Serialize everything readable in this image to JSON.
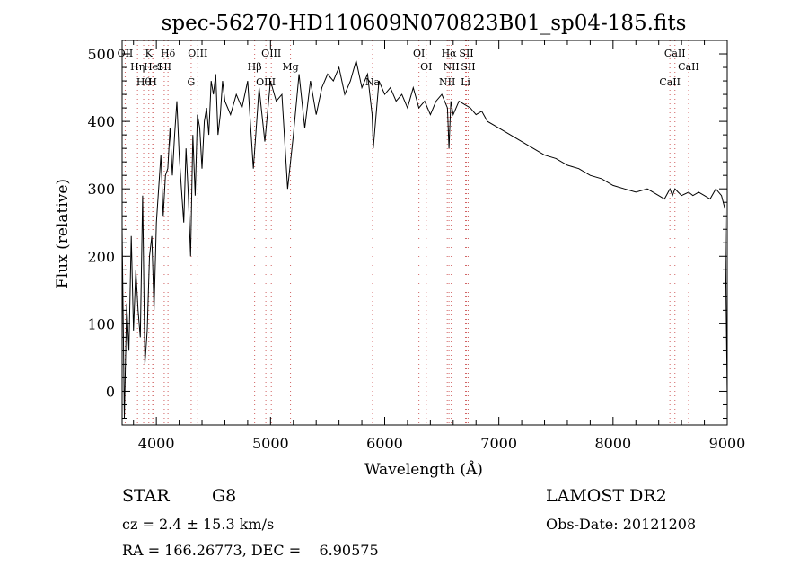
{
  "chart_data": {
    "type": "line",
    "title": "spec-56270-HD110609N070823B01_sp04-185.fits",
    "xlabel": "Wavelength (Å)",
    "ylabel": "Flux (relative)",
    "xlim": [
      3700,
      9000
    ],
    "ylim": [
      -50,
      520
    ],
    "xticks": [
      4000,
      5000,
      6000,
      7000,
      8000,
      9000
    ],
    "yticks": [
      0,
      100,
      200,
      300,
      400,
      500
    ],
    "grid": false,
    "series": [
      {
        "x": [
          3700,
          3720,
          3740,
          3760,
          3780,
          3800,
          3820,
          3840,
          3860,
          3880,
          3900,
          3920,
          3940,
          3960,
          3980,
          4000,
          4020,
          4040,
          4060,
          4080,
          4100,
          4120,
          4140,
          4160,
          4180,
          4200,
          4220,
          4240,
          4260,
          4280,
          4300,
          4320,
          4340,
          4360,
          4380,
          4400,
          4420,
          4440,
          4460,
          4480,
          4500,
          4520,
          4540,
          4560,
          4580,
          4600,
          4650,
          4700,
          4750,
          4800,
          4850,
          4900,
          4950,
          5000,
          5050,
          5100,
          5150,
          5200,
          5250,
          5300,
          5350,
          5400,
          5450,
          5500,
          5550,
          5600,
          5650,
          5700,
          5750,
          5800,
          5850,
          5890,
          5900,
          5950,
          6000,
          6050,
          6100,
          6150,
          6200,
          6250,
          6300,
          6350,
          6400,
          6450,
          6500,
          6550,
          6563,
          6580,
          6600,
          6650,
          6700,
          6750,
          6800,
          6850,
          6900,
          7000,
          7100,
          7200,
          7300,
          7400,
          7500,
          7600,
          7700,
          7800,
          7900,
          8000,
          8100,
          8200,
          8300,
          8400,
          8450,
          8498,
          8520,
          8542,
          8570,
          8600,
          8662,
          8700,
          8750,
          8800,
          8850,
          8900,
          8950,
          8980,
          9000
        ],
        "y": [
          240,
          -40,
          130,
          60,
          230,
          90,
          180,
          120,
          80,
          290,
          40,
          90,
          200,
          230,
          120,
          250,
          300,
          350,
          260,
          320,
          330,
          390,
          320,
          380,
          430,
          350,
          300,
          250,
          360,
          290,
          200,
          380,
          290,
          410,
          390,
          330,
          400,
          420,
          380,
          460,
          440,
          470,
          380,
          410,
          460,
          430,
          410,
          440,
          420,
          460,
          330,
          450,
          370,
          460,
          430,
          440,
          300,
          380,
          470,
          390,
          460,
          410,
          450,
          470,
          460,
          480,
          440,
          460,
          490,
          450,
          470,
          410,
          360,
          460,
          440,
          450,
          430,
          440,
          420,
          450,
          420,
          430,
          410,
          430,
          440,
          420,
          360,
          430,
          410,
          430,
          425,
          420,
          410,
          415,
          400,
          390,
          380,
          370,
          360,
          350,
          345,
          335,
          330,
          320,
          315,
          305,
          300,
          295,
          300,
          290,
          285,
          300,
          290,
          300,
          295,
          290,
          295,
          290,
          295,
          290,
          285,
          300,
          290,
          270,
          -5
        ]
      }
    ],
    "lines": [
      {
        "name": "OII",
        "x": 3727
      },
      {
        "name": "Hη",
        "x": 3835
      },
      {
        "name": "Hθ",
        "x": 3889
      },
      {
        "name": "K",
        "x": 3934
      },
      {
        "name": "HeI",
        "x": 3970
      },
      {
        "name": "H",
        "x": 3968
      },
      {
        "name": "Hδ",
        "x": 4102
      },
      {
        "name": "SII",
        "x": 4069
      },
      {
        "name": "G",
        "x": 4305
      },
      {
        "name": "OIII",
        "x": 4363
      },
      {
        "name": "Hβ",
        "x": 4861
      },
      {
        "name": "OIII",
        "x": 4959
      },
      {
        "name": "OIII",
        "x": 5007
      },
      {
        "name": "Mg",
        "x": 5175
      },
      {
        "name": "Na",
        "x": 5894
      },
      {
        "name": "OI",
        "x": 6300
      },
      {
        "name": "OI",
        "x": 6364
      },
      {
        "name": "NII",
        "x": 6548
      },
      {
        "name": "Hα",
        "x": 6563
      },
      {
        "name": "NII",
        "x": 6583
      },
      {
        "name": "Li",
        "x": 6708
      },
      {
        "name": "SII",
        "x": 6716
      },
      {
        "name": "SII",
        "x": 6731
      },
      {
        "name": "CaII",
        "x": 8498
      },
      {
        "name": "CaII",
        "x": 8542
      },
      {
        "name": "CaII",
        "x": 8662
      }
    ]
  },
  "info": {
    "object_type": "STAR",
    "subclass": "G8",
    "survey": "LAMOST DR2",
    "redshift": "cz = 2.4 ± 15.3 km/s",
    "obs_date": "Obs-Date: 20121208",
    "coords": "RA = 166.26773, DEC =    6.90575"
  }
}
